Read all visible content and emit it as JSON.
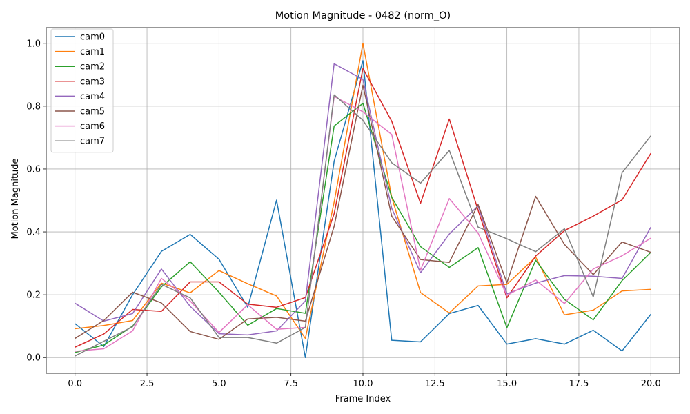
{
  "chart_data": {
    "type": "line",
    "title": "Motion Magnitude - 0482 (norm_O)",
    "xlabel": "Frame Index",
    "ylabel": "Motion Magnitude",
    "xlim": [
      -1,
      21
    ],
    "ylim": [
      -0.05,
      1.05
    ],
    "xticks": [
      0.0,
      2.5,
      5.0,
      7.5,
      10.0,
      12.5,
      15.0,
      17.5,
      20.0
    ],
    "xtick_labels": [
      "0.0",
      "2.5",
      "5.0",
      "7.5",
      "10.0",
      "12.5",
      "15.0",
      "17.5",
      "20.0"
    ],
    "yticks": [
      0.0,
      0.2,
      0.4,
      0.6,
      0.8,
      1.0
    ],
    "ytick_labels": [
      "0.0",
      "0.2",
      "0.4",
      "0.6",
      "0.8",
      "1.0"
    ],
    "grid": true,
    "legend_position": "upper-left",
    "x": [
      0,
      1,
      2,
      3,
      4,
      5,
      6,
      7,
      8,
      9,
      10,
      11,
      12,
      13,
      14,
      15,
      16,
      17,
      18,
      19,
      20
    ],
    "series": [
      {
        "name": "cam0",
        "color": "#1f77b4",
        "values": [
          0.108,
          0.035,
          0.2,
          0.338,
          0.392,
          0.313,
          0.16,
          0.501,
          0.0,
          0.625,
          0.945,
          0.055,
          0.05,
          0.14,
          0.166,
          0.043,
          0.06,
          0.043,
          0.087,
          0.021,
          0.138
        ]
      },
      {
        "name": "cam1",
        "color": "#ff7f0e",
        "values": [
          0.092,
          0.102,
          0.118,
          0.237,
          0.206,
          0.277,
          0.235,
          0.196,
          0.061,
          0.495,
          1.0,
          0.51,
          0.207,
          0.142,
          0.228,
          0.233,
          0.32,
          0.136,
          0.151,
          0.212,
          0.217
        ]
      },
      {
        "name": "cam2",
        "color": "#2ca02c",
        "values": [
          0.016,
          0.04,
          0.1,
          0.225,
          0.305,
          0.208,
          0.103,
          0.156,
          0.141,
          0.737,
          0.809,
          0.51,
          0.353,
          0.287,
          0.35,
          0.095,
          0.31,
          0.185,
          0.12,
          0.245,
          0.335
        ]
      },
      {
        "name": "cam3",
        "color": "#d62728",
        "values": [
          0.033,
          0.075,
          0.153,
          0.147,
          0.241,
          0.241,
          0.17,
          0.16,
          0.191,
          0.458,
          0.92,
          0.752,
          0.491,
          0.759,
          0.469,
          0.19,
          0.323,
          0.404,
          0.45,
          0.502,
          0.65
        ]
      },
      {
        "name": "cam4",
        "color": "#9467bd",
        "values": [
          0.173,
          0.116,
          0.14,
          0.282,
          0.163,
          0.076,
          0.072,
          0.085,
          0.18,
          0.935,
          0.885,
          0.475,
          0.27,
          0.393,
          0.483,
          0.203,
          0.237,
          0.261,
          0.259,
          0.252,
          0.415
        ]
      },
      {
        "name": "cam5",
        "color": "#8c564b",
        "values": [
          0.061,
          0.118,
          0.208,
          0.174,
          0.083,
          0.058,
          0.123,
          0.128,
          0.116,
          0.418,
          0.867,
          0.45,
          0.312,
          0.303,
          0.487,
          0.238,
          0.513,
          0.36,
          0.264,
          0.368,
          0.335
        ]
      },
      {
        "name": "cam6",
        "color": "#e377c2",
        "values": [
          0.02,
          0.028,
          0.085,
          0.252,
          0.18,
          0.08,
          0.168,
          0.09,
          0.096,
          0.831,
          0.782,
          0.71,
          0.278,
          0.506,
          0.396,
          0.198,
          0.247,
          0.172,
          0.282,
          0.324,
          0.38
        ]
      },
      {
        "name": "cam7",
        "color": "#7f7f7f",
        "values": [
          0.005,
          0.052,
          0.098,
          0.233,
          0.19,
          0.064,
          0.064,
          0.046,
          0.096,
          0.836,
          0.755,
          0.62,
          0.555,
          0.659,
          0.415,
          0.378,
          0.337,
          0.41,
          0.193,
          0.588,
          0.706
        ]
      }
    ]
  }
}
